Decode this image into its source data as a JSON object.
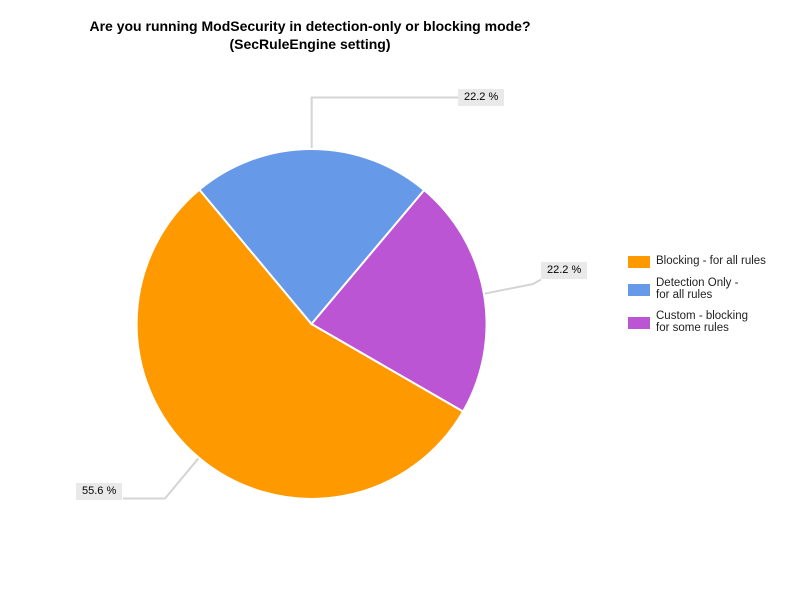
{
  "chart_data": {
    "type": "pie",
    "title": "Are you running ModSecurity in detection-only or blocking mode?",
    "subtitle": "(SecRuleEngine setting)",
    "legend_position": "right",
    "grid": false,
    "start_angle_deg": -30,
    "direction": "clockwise",
    "background_color": "#ffffff",
    "callout_line_color": "#d4d4d4",
    "callout_label_bg": "#e9e9e9",
    "slices": [
      {
        "id": "blocking",
        "label": "Blocking - for all rules",
        "legend_label": "Blocking - for all rules",
        "value_pct": 55.6,
        "callout_label": "55.6 %",
        "color": "#FF9900"
      },
      {
        "id": "detection-only",
        "label": "Detection Only - for all rules",
        "legend_label": "Detection Only -\nfor all rules",
        "value_pct": 22.2,
        "callout_label": "22.2 %",
        "color": "#6699E8"
      },
      {
        "id": "custom",
        "label": "Custom - blocking for some rules",
        "legend_label": "Custom - blocking\nfor some rules",
        "value_pct": 22.2,
        "callout_label": "22.2 %",
        "color": "#BB55D3"
      }
    ]
  }
}
